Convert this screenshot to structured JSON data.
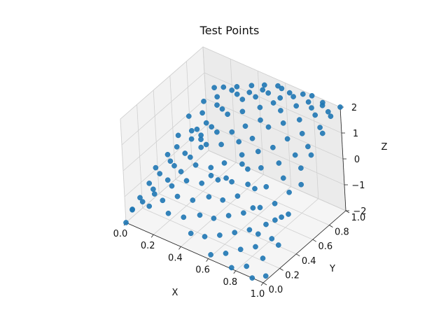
{
  "chart_data": {
    "type": "scatter",
    "title": "Test Points",
    "xlabel": "X",
    "ylabel": "Y",
    "zlabel": "Z",
    "xlim": [
      0,
      1
    ],
    "ylim": [
      0,
      1
    ],
    "zlim": [
      -2,
      2
    ],
    "xticks": [
      "0.0",
      "0.2",
      "0.4",
      "0.6",
      "0.8",
      "1.0"
    ],
    "yticks": [
      "0.0",
      "0.2",
      "0.4",
      "0.6",
      "0.8",
      "1.0"
    ],
    "zticks": [
      "−2",
      "−1",
      "0",
      "1",
      "2"
    ],
    "grid": true,
    "color": "#1f77b4",
    "points": [
      [
        0.0,
        0.0,
        -2.0
      ],
      [
        0.02,
        0.05,
        -1.6
      ],
      [
        0.04,
        0.02,
        -1.45
      ],
      [
        0.05,
        0.1,
        -1.2
      ],
      [
        0.06,
        0.2,
        -0.9
      ],
      [
        0.05,
        0.3,
        -0.6
      ],
      [
        0.08,
        0.4,
        -0.3
      ],
      [
        0.07,
        0.55,
        0.0
      ],
      [
        0.06,
        0.7,
        0.3
      ],
      [
        0.08,
        0.85,
        0.5
      ],
      [
        0.1,
        0.05,
        -1.1
      ],
      [
        0.12,
        0.15,
        -0.85
      ],
      [
        0.11,
        0.25,
        -0.55
      ],
      [
        0.13,
        0.35,
        -0.3
      ],
      [
        0.12,
        0.45,
        -0.05
      ],
      [
        0.14,
        0.6,
        0.2
      ],
      [
        0.13,
        0.75,
        0.45
      ],
      [
        0.15,
        0.9,
        0.7
      ],
      [
        0.1,
        0.95,
        0.8
      ],
      [
        0.16,
        0.1,
        -0.8
      ],
      [
        0.18,
        0.0,
        -0.95
      ],
      [
        0.2,
        0.2,
        -0.45
      ],
      [
        0.19,
        0.3,
        -0.2
      ],
      [
        0.21,
        0.4,
        0.05
      ],
      [
        0.2,
        0.5,
        0.3
      ],
      [
        0.22,
        0.65,
        0.55
      ],
      [
        0.21,
        0.8,
        0.8
      ],
      [
        0.23,
        0.95,
        1.0
      ],
      [
        0.25,
        0.05,
        -0.7
      ],
      [
        0.26,
        0.15,
        -0.4
      ],
      [
        0.27,
        0.25,
        -0.1
      ],
      [
        0.28,
        0.35,
        0.2
      ],
      [
        0.27,
        0.5,
        0.45
      ],
      [
        0.29,
        0.6,
        0.7
      ],
      [
        0.28,
        0.75,
        0.95
      ],
      [
        0.3,
        0.9,
        1.15
      ],
      [
        0.32,
        0.0,
        -0.9
      ],
      [
        0.33,
        0.1,
        -0.5
      ],
      [
        0.34,
        0.2,
        -0.15
      ],
      [
        0.35,
        0.3,
        0.2
      ],
      [
        0.34,
        0.45,
        0.55
      ],
      [
        0.36,
        0.55,
        0.8
      ],
      [
        0.35,
        0.7,
        1.05
      ],
      [
        0.37,
        0.85,
        1.25
      ],
      [
        0.36,
        0.98,
        1.4
      ],
      [
        0.4,
        0.05,
        -1.0
      ],
      [
        0.41,
        0.15,
        -0.6
      ],
      [
        0.42,
        0.25,
        -0.2
      ],
      [
        0.43,
        0.35,
        0.15
      ],
      [
        0.42,
        0.5,
        0.6
      ],
      [
        0.44,
        0.6,
        0.85
      ],
      [
        0.43,
        0.75,
        1.2
      ],
      [
        0.45,
        0.88,
        1.45
      ],
      [
        0.46,
        0.95,
        1.55
      ],
      [
        0.48,
        0.0,
        -1.3
      ],
      [
        0.49,
        0.1,
        -0.85
      ],
      [
        0.5,
        0.2,
        -0.4
      ],
      [
        0.51,
        0.3,
        0.0
      ],
      [
        0.5,
        0.4,
        0.35
      ],
      [
        0.52,
        0.55,
        0.8
      ],
      [
        0.51,
        0.65,
        1.1
      ],
      [
        0.53,
        0.8,
        1.45
      ],
      [
        0.52,
        0.92,
        1.65
      ],
      [
        0.55,
        0.05,
        -1.4
      ],
      [
        0.56,
        0.15,
        -0.95
      ],
      [
        0.57,
        0.25,
        -0.5
      ],
      [
        0.58,
        0.35,
        -0.05
      ],
      [
        0.57,
        0.5,
        0.55
      ],
      [
        0.59,
        0.6,
        0.95
      ],
      [
        0.58,
        0.72,
        1.3
      ],
      [
        0.6,
        0.85,
        1.65
      ],
      [
        0.59,
        0.97,
        1.85
      ],
      [
        0.62,
        0.0,
        -1.8
      ],
      [
        0.63,
        0.1,
        -1.3
      ],
      [
        0.64,
        0.2,
        -0.8
      ],
      [
        0.65,
        0.3,
        -0.3
      ],
      [
        0.64,
        0.45,
        0.3
      ],
      [
        0.66,
        0.55,
        0.75
      ],
      [
        0.65,
        0.7,
        1.25
      ],
      [
        0.67,
        0.82,
        1.6
      ],
      [
        0.66,
        0.95,
        1.9
      ],
      [
        0.7,
        0.05,
        -1.7
      ],
      [
        0.71,
        0.15,
        -1.15
      ],
      [
        0.72,
        0.25,
        -0.65
      ],
      [
        0.73,
        0.38,
        -0.05
      ],
      [
        0.72,
        0.48,
        0.45
      ],
      [
        0.74,
        0.6,
        0.95
      ],
      [
        0.73,
        0.75,
        1.45
      ],
      [
        0.75,
        0.88,
        1.8
      ],
      [
        0.74,
        0.98,
        1.95
      ],
      [
        0.77,
        0.0,
        -1.95
      ],
      [
        0.78,
        0.1,
        -1.5
      ],
      [
        0.79,
        0.2,
        -1.0
      ],
      [
        0.8,
        0.32,
        -0.45
      ],
      [
        0.79,
        0.42,
        0.05
      ],
      [
        0.81,
        0.55,
        0.65
      ],
      [
        0.8,
        0.68,
        1.2
      ],
      [
        0.82,
        0.8,
        1.65
      ],
      [
        0.81,
        0.93,
        1.95
      ],
      [
        0.85,
        0.05,
        -1.85
      ],
      [
        0.86,
        0.15,
        -1.35
      ],
      [
        0.87,
        0.27,
        -0.8
      ],
      [
        0.88,
        0.37,
        -0.25
      ],
      [
        0.87,
        0.5,
        0.35
      ],
      [
        0.89,
        0.62,
        0.95
      ],
      [
        0.88,
        0.73,
        1.45
      ],
      [
        0.9,
        0.86,
        1.85
      ],
      [
        0.89,
        0.97,
        2.0
      ],
      [
        0.92,
        0.0,
        -2.0
      ],
      [
        0.93,
        0.12,
        -1.55
      ],
      [
        0.94,
        0.22,
        -1.05
      ],
      [
        0.95,
        0.33,
        -0.5
      ],
      [
        0.94,
        0.45,
        0.1
      ],
      [
        0.96,
        0.57,
        0.75
      ],
      [
        0.95,
        0.68,
        1.25
      ],
      [
        0.97,
        0.8,
        1.7
      ],
      [
        0.96,
        0.92,
        1.95
      ],
      [
        0.99,
        0.05,
        -1.9
      ],
      [
        1.0,
        0.2,
        -1.1
      ],
      [
        0.99,
        0.35,
        -0.35
      ],
      [
        1.0,
        0.5,
        0.4
      ],
      [
        0.99,
        0.65,
        1.1
      ],
      [
        1.0,
        0.78,
        1.6
      ],
      [
        0.99,
        0.9,
        1.9
      ],
      [
        1.0,
        1.0,
        2.0
      ],
      [
        0.15,
        0.98,
        0.85
      ],
      [
        0.25,
        0.98,
        1.1
      ],
      [
        0.45,
        0.99,
        1.6
      ],
      [
        0.55,
        0.99,
        1.8
      ],
      [
        0.62,
        0.9,
        1.75
      ],
      [
        0.7,
        0.93,
        1.9
      ],
      [
        0.8,
        0.99,
        2.0
      ],
      [
        0.85,
        0.9,
        1.9
      ],
      [
        0.9,
        0.95,
        1.97
      ],
      [
        0.38,
        0.92,
        1.35
      ],
      [
        0.3,
        0.45,
        0.35
      ],
      [
        0.24,
        0.55,
        0.4
      ],
      [
        0.18,
        0.6,
        0.35
      ],
      [
        0.6,
        0.45,
        0.4
      ],
      [
        0.68,
        0.38,
        0.0
      ],
      [
        0.76,
        0.3,
        -0.5
      ],
      [
        0.84,
        0.22,
        -1.1
      ],
      [
        0.92,
        0.3,
        -0.6
      ],
      [
        0.46,
        0.3,
        0.05
      ],
      [
        0.54,
        0.35,
        0.0
      ]
    ]
  }
}
